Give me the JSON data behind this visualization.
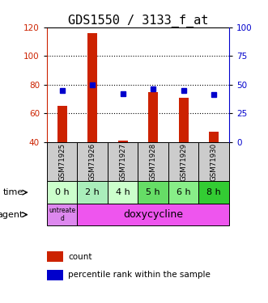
{
  "title": "GDS1550 / 3133_f_at",
  "samples": [
    "GSM71925",
    "GSM71926",
    "GSM71927",
    "GSM71928",
    "GSM71929",
    "GSM71930"
  ],
  "time_labels": [
    "0 h",
    "2 h",
    "4 h",
    "5 h",
    "6 h",
    "8 h"
  ],
  "count_values": [
    65,
    116,
    41,
    75,
    71,
    47
  ],
  "count_base": 40,
  "percentile_values": [
    45,
    50,
    42,
    46,
    45,
    41
  ],
  "ylim_left": [
    40,
    120
  ],
  "ylim_right": [
    0,
    100
  ],
  "yticks_left": [
    40,
    60,
    80,
    100,
    120
  ],
  "yticks_right": [
    0,
    25,
    50,
    75,
    100
  ],
  "bar_color": "#cc2200",
  "dot_color": "#0000cc",
  "title_fontsize": 11,
  "axis_label_color_left": "#cc2200",
  "axis_label_color_right": "#0000cc",
  "time_row_colors": [
    "#ccffcc",
    "#aaeebb",
    "#ccffcc",
    "#66dd66",
    "#88ee88",
    "#33cc33"
  ],
  "gsm_bg_color": "#cccccc",
  "untreated_color": "#dd88ee",
  "doxy_color": "#ee55ee",
  "legend_count_color": "#cc2200",
  "legend_pct_color": "#0000cc"
}
